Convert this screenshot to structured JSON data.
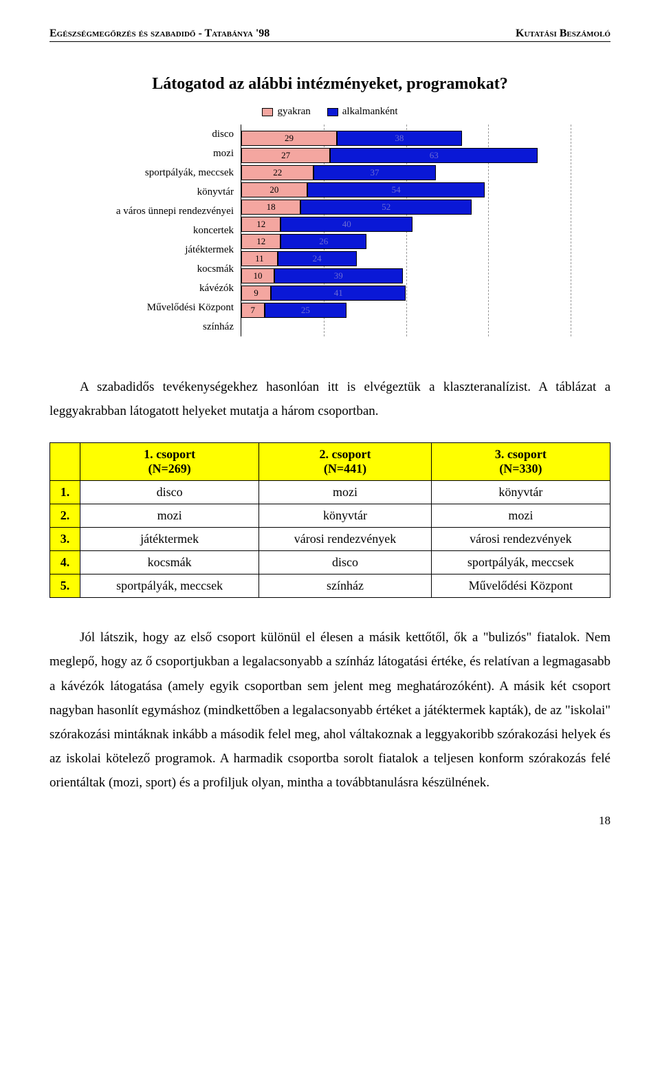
{
  "header": {
    "left": "Egészségmegőrzés és szabadidő - Tatabánya '98",
    "right": "Kutatási Beszámoló"
  },
  "chart": {
    "type": "stacked-bar-horizontal",
    "title": "Látogatod az alábbi intézményeket, programokat?",
    "legend_gyakran": "gyakran",
    "legend_alkalmankent": "alkalmanként",
    "color_gyakran": "#f4a6a0",
    "color_alkalmankent": "#0a18d6",
    "xmax": 100,
    "gridlines": [
      25,
      50,
      75,
      100
    ],
    "categories": [
      {
        "label": "disco",
        "gyakran": 29,
        "alkalmankent": 38
      },
      {
        "label": "mozi",
        "gyakran": 27,
        "alkalmankent": 63
      },
      {
        "label": "sportpályák, meccsek",
        "gyakran": 22,
        "alkalmankent": 37
      },
      {
        "label": "könyvtár",
        "gyakran": 20,
        "alkalmankent": 54
      },
      {
        "label": "a város ünnepi rendezvényei",
        "gyakran": 18,
        "alkalmankent": 52
      },
      {
        "label": "koncertek",
        "gyakran": 12,
        "alkalmankent": 40
      },
      {
        "label": "játéktermek",
        "gyakran": 12,
        "alkalmankent": 26
      },
      {
        "label": "kocsmák",
        "gyakran": 11,
        "alkalmankent": 24
      },
      {
        "label": "kávézók",
        "gyakran": 10,
        "alkalmankent": 39
      },
      {
        "label": "Művelődési Központ",
        "gyakran": 9,
        "alkalmankent": 41
      },
      {
        "label": "színház",
        "gyakran": 7,
        "alkalmankent": 25
      }
    ]
  },
  "para1": "A szabadidős tevékenységekhez hasonlóan itt is elvégeztük a klaszteranalízist. A táblázat a leggyakrabban látogatott helyeket mutatja a három csoportban.",
  "table": {
    "headers": {
      "blank": "",
      "c1a": "1. csoport",
      "c1b": "(N=269)",
      "c2a": "2. csoport",
      "c2b": "(N=441)",
      "c3a": "3. csoport",
      "c3b": "(N=330)"
    },
    "rows": [
      {
        "n": "1.",
        "c1": "disco",
        "c2": "mozi",
        "c3": "könyvtár"
      },
      {
        "n": "2.",
        "c1": "mozi",
        "c2": "könyvtár",
        "c3": "mozi"
      },
      {
        "n": "3.",
        "c1": "játéktermek",
        "c2": "városi rendezvények",
        "c3": "városi rendezvények"
      },
      {
        "n": "4.",
        "c1": "kocsmák",
        "c2": "disco",
        "c3": "sportpályák, meccsek"
      },
      {
        "n": "5.",
        "c1": "sportpályák, meccsek",
        "c2": "színház",
        "c3": "Művelődési Központ"
      }
    ]
  },
  "para2": "Jól látszik, hogy az első csoport különül el élesen a másik kettőtől, ők a \"bulizós\" fiatalok. Nem meglepő, hogy az ő csoportjukban a legalacsonyabb a színház látogatási értéke, és relatívan a legmagasabb a kávézók látogatása (amely egyik csoportban sem jelent meg meghatározóként). A másik két csoport nagyban hasonlít egymáshoz (mindkettőben a legalacsonyabb értéket a játéktermek kapták), de az \"iskolai\" szórakozási mintáknak inkább a második felel meg, ahol váltakoznak a leggyakoribb szórakozási helyek és az iskolai kötelező programok. A harmadik csoportba sorolt fiatalok a teljesen konform szórakozás felé orientáltak (mozi, sport) és a profiljuk olyan, mintha a továbbtanulásra készülnének.",
  "page_number": "18"
}
